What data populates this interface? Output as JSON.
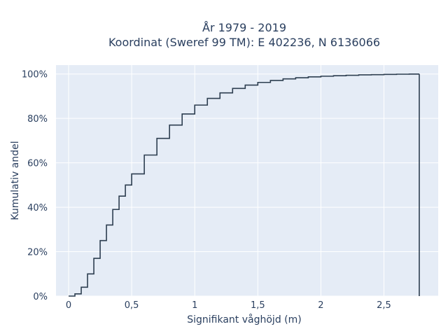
{
  "chart_data": {
    "type": "line",
    "line_shape": "step",
    "title_lines": [
      "År 1979 - 2019",
      "Koordinat (Sweref 99 TM): E 402236, N 6136066"
    ],
    "xlabel": "Signifikant våghöjd (m)",
    "ylabel": "Kumulativ andel",
    "xlim": [
      -0.1,
      2.93
    ],
    "ylim": [
      0,
      1.04
    ],
    "x_ticks": [
      0,
      0.5,
      1,
      1.5,
      2,
      2.5
    ],
    "x_tick_labels": [
      "0",
      "0,5",
      "1",
      "1,5",
      "2",
      "2,5"
    ],
    "y_ticks": [
      0,
      0.2,
      0.4,
      0.6,
      0.8,
      1.0
    ],
    "y_tick_labels": [
      "0%",
      "20%",
      "40%",
      "60%",
      "80%",
      "100%"
    ],
    "grid": true,
    "series": [
      {
        "color": "#2d3e50",
        "x": [
          0.0,
          0.05,
          0.1,
          0.15,
          0.2,
          0.25,
          0.3,
          0.35,
          0.4,
          0.45,
          0.5,
          0.6,
          0.7,
          0.8,
          0.9,
          1.0,
          1.1,
          1.2,
          1.3,
          1.4,
          1.5,
          1.6,
          1.7,
          1.8,
          1.9,
          2.0,
          2.1,
          2.2,
          2.3,
          2.4,
          2.5,
          2.6,
          2.7,
          2.78,
          2.78
        ],
        "y": [
          0.0,
          0.01,
          0.04,
          0.1,
          0.17,
          0.25,
          0.32,
          0.39,
          0.45,
          0.5,
          0.55,
          0.635,
          0.71,
          0.77,
          0.82,
          0.86,
          0.89,
          0.915,
          0.935,
          0.95,
          0.962,
          0.971,
          0.978,
          0.983,
          0.987,
          0.99,
          0.992,
          0.994,
          0.996,
          0.997,
          0.998,
          0.999,
          0.9995,
          1.0,
          0.0
        ]
      }
    ]
  }
}
